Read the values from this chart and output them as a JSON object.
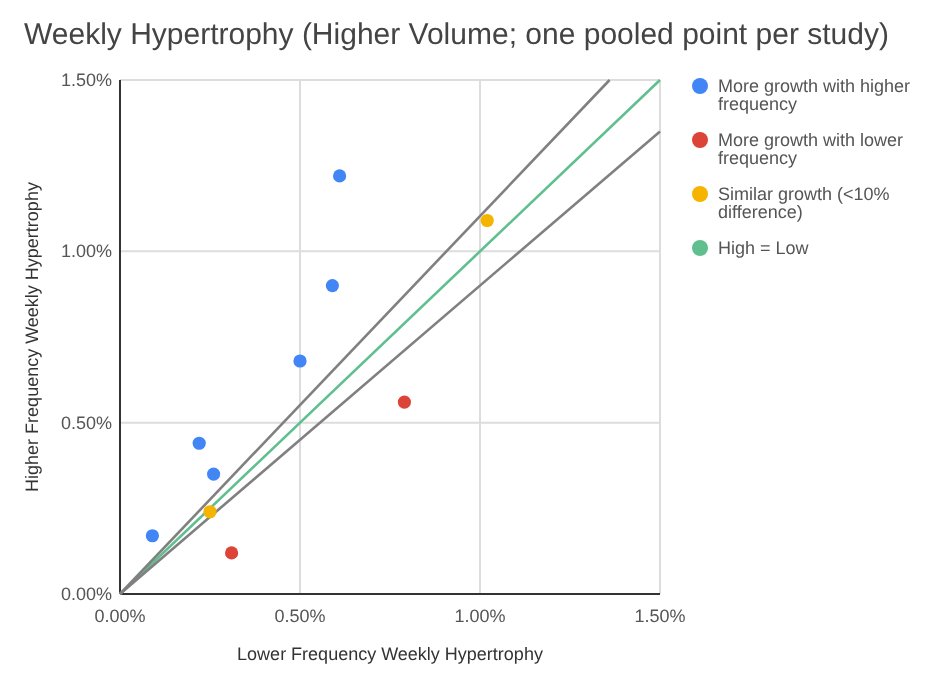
{
  "chart_data": {
    "type": "scatter",
    "title": "Weekly Hypertrophy (Higher Volume; one pooled point per study)",
    "xlabel": "Lower Frequency Weekly Hypertrophy",
    "ylabel": "Higher Frequency Weekly Hypertrophy",
    "xlim": [
      0,
      1.5
    ],
    "ylim": [
      0,
      1.5
    ],
    "xticks": [
      {
        "value": 0,
        "label": "0.00%"
      },
      {
        "value": 0.5,
        "label": "0.50%"
      },
      {
        "value": 1,
        "label": "1.00%"
      },
      {
        "value": 1.5,
        "label": "1.50%"
      }
    ],
    "yticks": [
      {
        "value": 0,
        "label": "0.00%"
      },
      {
        "value": 0.5,
        "label": "0.50%"
      },
      {
        "value": 1,
        "label": "1.00%"
      },
      {
        "value": 1.5,
        "label": "1.50%"
      }
    ],
    "grid": true,
    "legend": "right",
    "marker": "circle",
    "series": [
      {
        "name": "More growth with higher frequency",
        "color": "#4285f4",
        "x": [
          0.61,
          0.59,
          0.5,
          0.22,
          0.26,
          0.09
        ],
        "values": [
          1.22,
          0.9,
          0.68,
          0.44,
          0.35,
          0.17
        ]
      },
      {
        "name": "More growth with lower frequency",
        "color": "#db4437",
        "x": [
          0.79,
          0.31
        ],
        "values": [
          0.56,
          0.12
        ]
      },
      {
        "name": "Similar growth (<10% difference)",
        "color": "#f4b400",
        "x": [
          1.02,
          0.25
        ],
        "values": [
          1.09,
          0.24
        ]
      },
      {
        "name": "High = Low",
        "type": "line",
        "marker": "none",
        "color": "#5fbf8f",
        "x": [
          0,
          1.5
        ],
        "values": [
          0,
          1.5
        ]
      },
      {
        "type": "line",
        "marker": "none",
        "color": "#808080",
        "x": [
          0,
          1.36
        ],
        "values": [
          0,
          1.5
        ]
      },
      {
        "type": "line",
        "marker": "none",
        "color": "#808080",
        "x": [
          0,
          1.5
        ],
        "values": [
          0,
          1.35
        ]
      }
    ]
  }
}
